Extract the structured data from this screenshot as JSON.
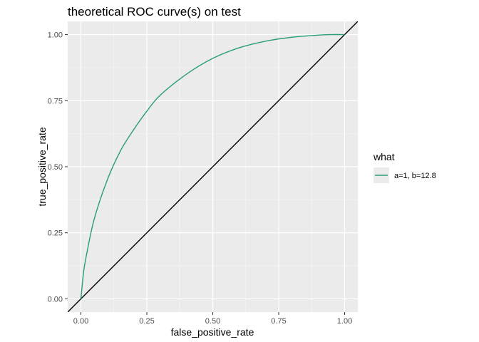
{
  "chart_data": {
    "type": "line",
    "title": "theoretical ROC curve(s) on test",
    "xlabel": "false_positive_rate",
    "ylabel": "true_positive_rate",
    "xlim": [
      -0.05,
      1.05
    ],
    "ylim": [
      -0.05,
      1.05
    ],
    "x_ticks": [
      "0.00",
      "0.25",
      "0.50",
      "0.75",
      "1.00"
    ],
    "y_ticks": [
      "0.00",
      "0.25",
      "0.50",
      "0.75",
      "1.00"
    ],
    "grid": true,
    "legend": {
      "title": "what",
      "placement": "right",
      "entries": [
        "a=1, b=12.8"
      ]
    },
    "series": [
      {
        "name": "a=1, b=12.8",
        "color": "#2a9d78",
        "x": [
          0,
          0.01,
          0.02,
          0.05,
          0.1,
          0.15,
          0.2,
          0.25,
          0.3,
          0.4,
          0.5,
          0.6,
          0.7,
          0.8,
          0.9,
          0.95,
          1.0
        ],
        "y": [
          0,
          0.1,
          0.16,
          0.3,
          0.45,
          0.56,
          0.64,
          0.71,
          0.77,
          0.85,
          0.91,
          0.95,
          0.975,
          0.99,
          0.998,
          1.0,
          1.0
        ]
      }
    ],
    "reference_line": {
      "color": "#000000",
      "x": [
        -0.05,
        1.05
      ],
      "y": [
        -0.05,
        1.05
      ]
    }
  }
}
